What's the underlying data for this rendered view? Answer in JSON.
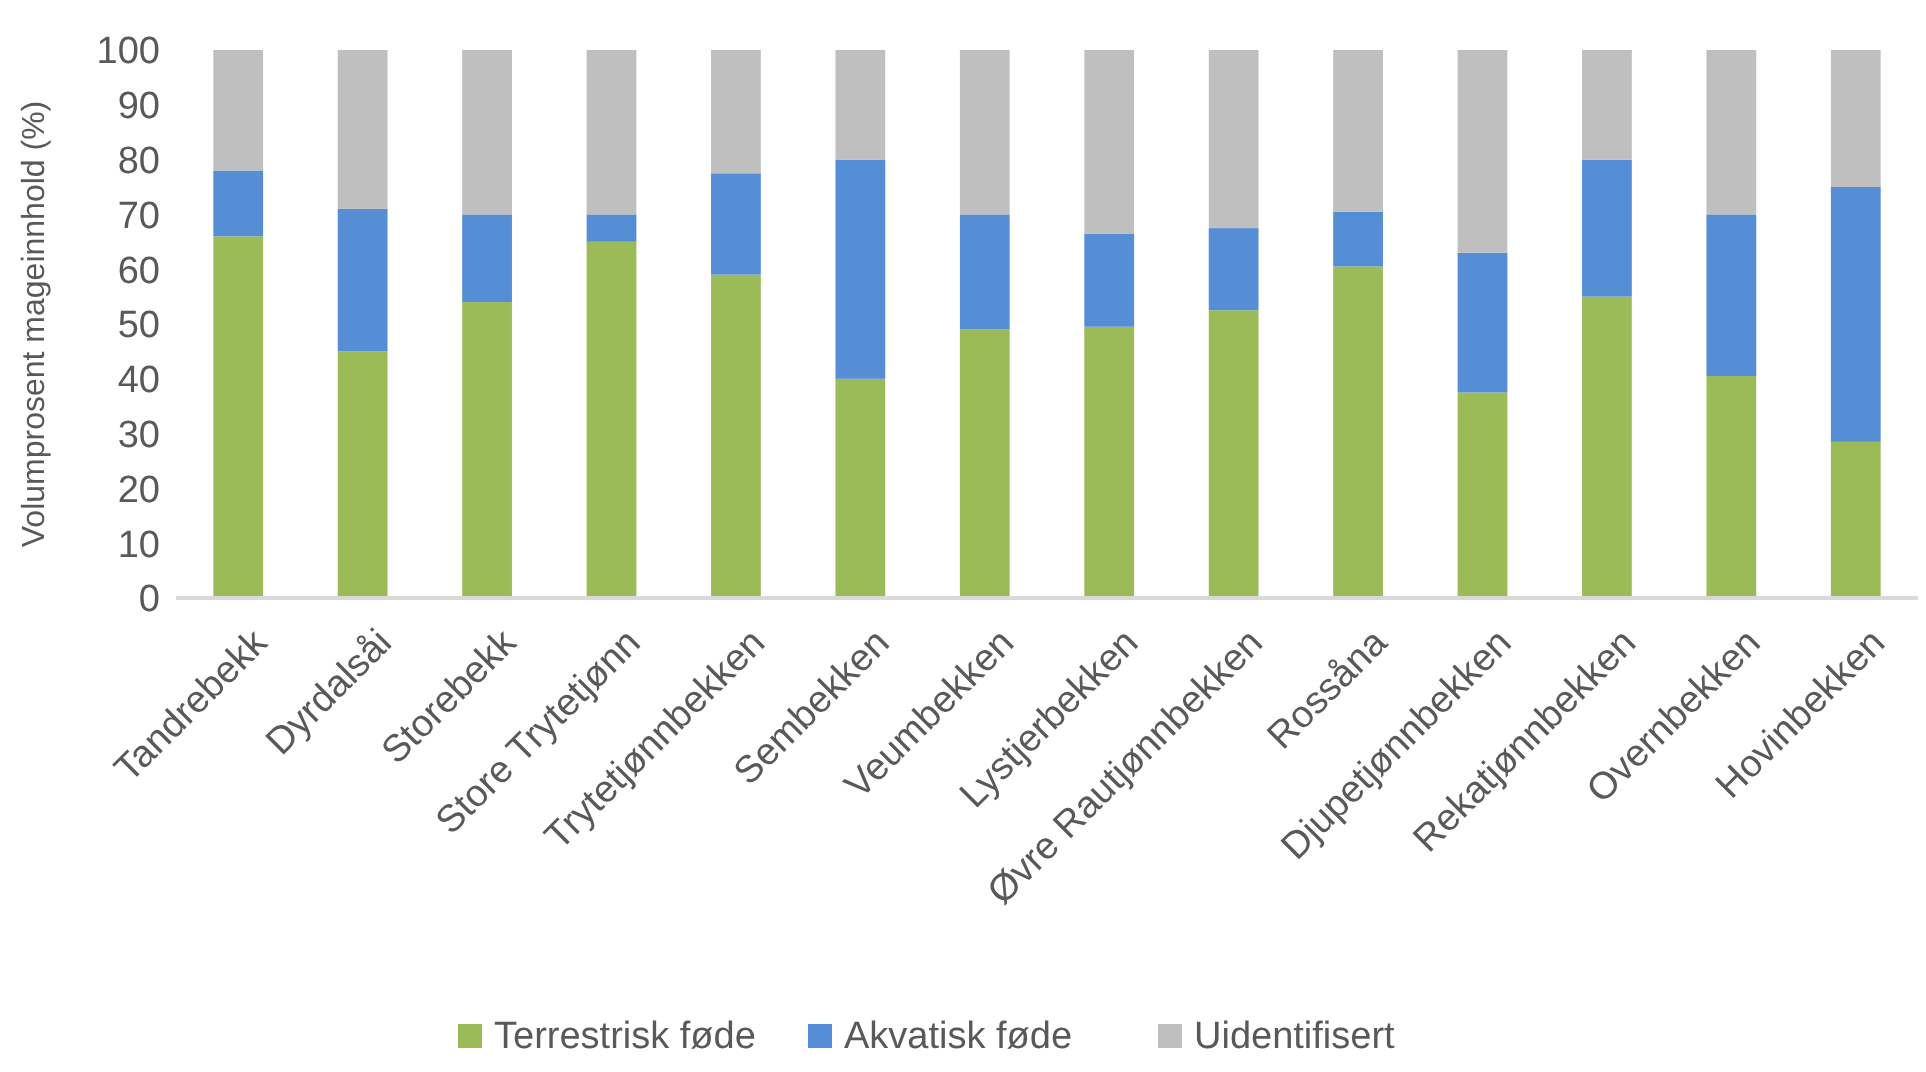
{
  "chart_data": {
    "type": "bar",
    "stacked": true,
    "ylabel": "Volumprosent mageinnhold (%)",
    "categories": [
      "Tandrebekk",
      "Dyrdalsåi",
      "Storebekk",
      "Store Trytetjønn",
      "Trytetjønnbekken",
      "Sembekken",
      "Veumbekken",
      "Lystjerbekken",
      "Øvre Rautjønnbekken",
      "Rossåna",
      "Djupetjønnbekken",
      "Rekatjønnbekken",
      "Overnbekken",
      "Hovinbekken"
    ],
    "series": [
      {
        "name": "Terrestrisk føde",
        "color": "#9bbb59",
        "values": [
          66,
          45,
          54,
          65,
          59,
          40,
          49,
          49.5,
          52.5,
          60.5,
          37.5,
          55,
          40.5,
          28.5
        ]
      },
      {
        "name": "Akvatisk føde",
        "color": "#558ed5",
        "values": [
          12,
          26,
          16,
          5,
          18.5,
          40,
          21,
          17,
          15,
          10,
          25.5,
          25,
          29.5,
          46.5
        ]
      },
      {
        "name": "Uidentifisert",
        "color": "#bfbfbf",
        "values": [
          22,
          29,
          30,
          30,
          22.5,
          20,
          30,
          33.5,
          32.5,
          29.5,
          37,
          20,
          30,
          25
        ]
      }
    ],
    "ylim": [
      0,
      100
    ],
    "yticks": [
      0,
      10,
      20,
      30,
      40,
      50,
      60,
      70,
      80,
      90,
      100
    ],
    "grid": false,
    "legend": "bottom"
  }
}
